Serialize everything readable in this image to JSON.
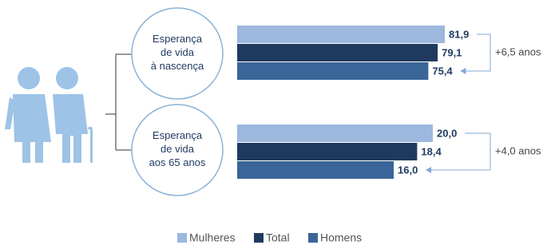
{
  "chart_data": {
    "type": "bar",
    "categories": [
      "Esperança\nde vida\nà nascença",
      "Esperança\nde vida\naos 65 anos"
    ],
    "series": [
      {
        "name": "Mulheres",
        "color": "#9db7de",
        "values": [
          81.9,
          20.0
        ],
        "value_labels": [
          "81,9",
          "20,0"
        ]
      },
      {
        "name": "Total",
        "color": "#1f3a5f",
        "values": [
          79.1,
          18.4
        ],
        "value_labels": [
          "79,1",
          "18,4"
        ]
      },
      {
        "name": "Homens",
        "color": "#3a6598",
        "values": [
          75.4,
          16.0
        ],
        "value_labels": [
          "75,4",
          "16,0"
        ]
      }
    ],
    "annotations": [
      "+6,5 anos",
      "+4,0 anos"
    ]
  }
}
